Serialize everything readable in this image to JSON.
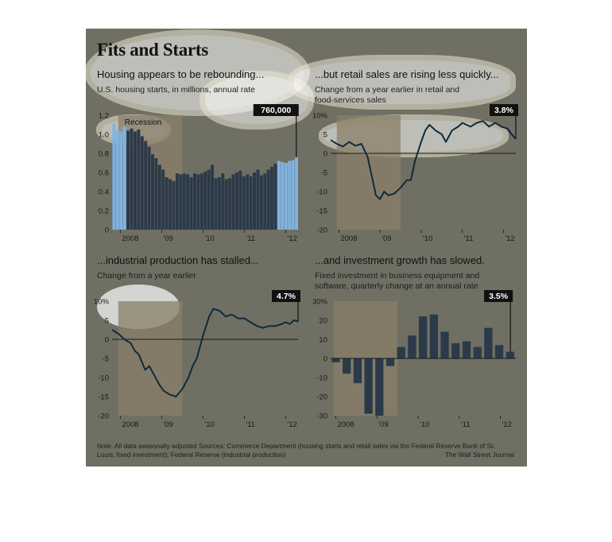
{
  "header": {
    "title": "Fits and Starts"
  },
  "footer": {
    "note": "Note: All data seasonally adjusted    Sources: Commerce Department (housing starts and retail sales via the Federal Reserve Bank of St. Louis, fixed investment); Federal Reserve (industrial production)",
    "credit": "The Wall Street Journal"
  },
  "colors": {
    "panel_bg": "#6f6f63",
    "recession": "#8a7f68",
    "bar_dark": "#2b3a4a",
    "bar_light": "#7fb3e0",
    "line": "#0f2a3d",
    "line_bright": "#1e6a9a"
  },
  "chart_data": [
    {
      "id": "housing",
      "type": "bar",
      "title": "Housing appears to be rebounding...",
      "subtitle": "U.S. housing starts, in millions, annual rate",
      "annotation": "760,000",
      "recession_label": "Recession",
      "ylim": [
        0,
        1.2
      ],
      "yticks": [
        "0",
        "0.2",
        "0.4",
        "0.6",
        "0.8",
        "1.0",
        "1.2"
      ],
      "xticks": [
        "2008",
        "'09",
        "'10",
        "'11",
        "'12"
      ],
      "x_start": 2007.8,
      "x_end": 2012.3,
      "xtick_pos": [
        2008,
        2009,
        2010,
        2011,
        2012
      ],
      "recession": [
        2007.95,
        2009.5
      ],
      "values": [
        1.11,
        1.05,
        1.03,
        1.08,
        1.04,
        1.06,
        1.03,
        1.05,
        0.98,
        0.93,
        0.87,
        0.79,
        0.75,
        0.68,
        0.63,
        0.55,
        0.53,
        0.51,
        0.59,
        0.58,
        0.59,
        0.58,
        0.55,
        0.59,
        0.58,
        0.59,
        0.61,
        0.63,
        0.68,
        0.54,
        0.55,
        0.59,
        0.53,
        0.54,
        0.58,
        0.6,
        0.62,
        0.56,
        0.58,
        0.56,
        0.6,
        0.63,
        0.57,
        0.59,
        0.63,
        0.66,
        0.69,
        0.72,
        0.71,
        0.7,
        0.72,
        0.73,
        0.76
      ]
    },
    {
      "id": "retail",
      "type": "line",
      "title": "...but retail sales are rising less quickly...",
      "subtitle": "Change from a year earlier in retail and food-services sales",
      "annotation": "3.8%",
      "ylim": [
        -20,
        10
      ],
      "yticks": [
        "-20",
        "-15",
        "-10",
        "-5",
        "0",
        "5",
        "10%"
      ],
      "xticks": [
        "2008",
        "'09",
        "'10",
        "'11",
        "'12"
      ],
      "x_start": 2007.8,
      "x_end": 2012.3,
      "xtick_pos": [
        2008,
        2009,
        2010,
        2011,
        2012
      ],
      "recession": [
        2007.95,
        2009.5
      ],
      "series": [
        {
          "values": [
            [
              2007.8,
              3.5
            ],
            [
              2007.95,
              2.5
            ],
            [
              2008.1,
              1.8
            ],
            [
              2008.25,
              3
            ],
            [
              2008.4,
              2
            ],
            [
              2008.55,
              2.5
            ],
            [
              2008.7,
              -1
            ],
            [
              2008.8,
              -6
            ],
            [
              2008.9,
              -11
            ],
            [
              2009.0,
              -12
            ],
            [
              2009.1,
              -10
            ],
            [
              2009.2,
              -11
            ],
            [
              2009.35,
              -10.5
            ],
            [
              2009.5,
              -9
            ],
            [
              2009.65,
              -7
            ],
            [
              2009.75,
              -7
            ],
            [
              2009.85,
              -2
            ],
            [
              2010.0,
              3
            ],
            [
              2010.1,
              6
            ],
            [
              2010.2,
              7.5
            ],
            [
              2010.35,
              6
            ],
            [
              2010.5,
              5
            ],
            [
              2010.6,
              3
            ],
            [
              2010.75,
              6
            ],
            [
              2010.9,
              7
            ],
            [
              2011.0,
              8
            ],
            [
              2011.2,
              7
            ],
            [
              2011.35,
              8
            ],
            [
              2011.5,
              8.5
            ],
            [
              2011.65,
              7
            ],
            [
              2011.8,
              8
            ],
            [
              2011.95,
              7
            ],
            [
              2012.1,
              6.5
            ],
            [
              2012.2,
              5
            ],
            [
              2012.3,
              3.8
            ]
          ]
        }
      ]
    },
    {
      "id": "industrial",
      "type": "line",
      "title": "...industrial production has stalled...",
      "subtitle": "Change from a year earlier",
      "annotation": "4.7%",
      "ylim": [
        -20,
        10
      ],
      "yticks": [
        "-20",
        "-15",
        "-10",
        "-5",
        "0",
        "5",
        "10%"
      ],
      "xticks": [
        "2008",
        "'09",
        "'10",
        "'11",
        "'12"
      ],
      "x_start": 2007.8,
      "x_end": 2012.3,
      "xtick_pos": [
        2008,
        2009,
        2010,
        2011,
        2012
      ],
      "recession": [
        2007.95,
        2009.5
      ],
      "series": [
        {
          "values": [
            [
              2007.8,
              2.5
            ],
            [
              2007.95,
              1.5
            ],
            [
              2008.1,
              0
            ],
            [
              2008.25,
              -1
            ],
            [
              2008.35,
              -3
            ],
            [
              2008.45,
              -4
            ],
            [
              2008.6,
              -8
            ],
            [
              2008.7,
              -7
            ],
            [
              2008.8,
              -9
            ],
            [
              2008.95,
              -12
            ],
            [
              2009.05,
              -13.5
            ],
            [
              2009.2,
              -14.5
            ],
            [
              2009.35,
              -15
            ],
            [
              2009.5,
              -13
            ],
            [
              2009.65,
              -10
            ],
            [
              2009.75,
              -7
            ],
            [
              2009.85,
              -5
            ],
            [
              2010.0,
              1
            ],
            [
              2010.15,
              6
            ],
            [
              2010.25,
              8
            ],
            [
              2010.4,
              7.5
            ],
            [
              2010.55,
              6
            ],
            [
              2010.7,
              6.5
            ],
            [
              2010.85,
              5.5
            ],
            [
              2011.0,
              5.5
            ],
            [
              2011.15,
              4.5
            ],
            [
              2011.3,
              3.5
            ],
            [
              2011.45,
              3
            ],
            [
              2011.6,
              3.5
            ],
            [
              2011.75,
              3.5
            ],
            [
              2011.9,
              4
            ],
            [
              2012.0,
              4.5
            ],
            [
              2012.1,
              4
            ],
            [
              2012.2,
              5
            ],
            [
              2012.3,
              4.7
            ]
          ]
        }
      ]
    },
    {
      "id": "investment",
      "type": "bar",
      "title": "...and investment growth has slowed.",
      "subtitle": "Fixed investment in business equipment and software, quarterly change at an annual rate",
      "annotation": "3.5%",
      "ylim": [
        -30,
        30
      ],
      "yticks": [
        "-30",
        "-20",
        "-10",
        "0",
        "10",
        "20",
        "30%"
      ],
      "xticks": [
        "2008",
        "'09",
        "'10",
        "'11",
        "'12"
      ],
      "x_start": 2007.875,
      "x_end": 2012.375,
      "xtick_pos": [
        2008,
        2009,
        2010,
        2011,
        2012
      ],
      "recession": [
        2007.95,
        2009.5
      ],
      "values": [
        -2,
        -8,
        -13,
        -29,
        -30,
        -4,
        6,
        12,
        22,
        23,
        14,
        8,
        9,
        6,
        16,
        7,
        3.5
      ]
    }
  ]
}
